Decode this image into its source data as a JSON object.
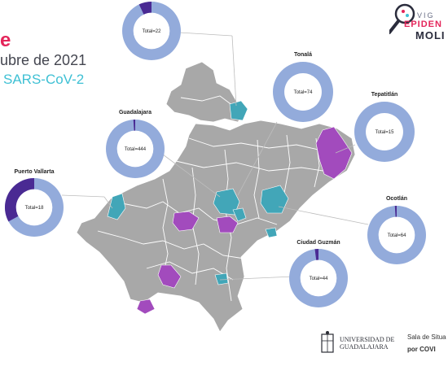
{
  "title_fragment": "e",
  "date_fragment": "ubre de 2021",
  "virus_fragment": "SARS-CoV-2",
  "colors": {
    "accent_pink": "#e4255a",
    "teal": "#3ec0d4",
    "region_teal": "#42a6b8",
    "region_purple": "#a24bbd",
    "region_gray": "#a8a8a8",
    "donut_light": "#93abdb",
    "donut_dark": "#4a2a93"
  },
  "logo": {
    "line1": "VIG",
    "line2": "EPIDEN",
    "line3": "MOLI"
  },
  "footer": {
    "udg_line1": "UNIVERSIDAD DE",
    "udg_line2": "GUADALAJARA",
    "sala_line1": "Sala de Situa",
    "sala_line2": "por COVI"
  },
  "chart_data": [
    {
      "type": "pie",
      "label": "",
      "total_text": "Total=22",
      "total": 22,
      "highlight_fraction": 0.07
    },
    {
      "type": "pie",
      "label": "Tonalá",
      "total_text": "Total=74",
      "total": 74,
      "highlight_fraction": 0.0
    },
    {
      "type": "pie",
      "label": "Tepatitlán",
      "total_text": "Total=15",
      "total": 15,
      "highlight_fraction": 0.0
    },
    {
      "type": "pie",
      "label": "Guadalajara",
      "total_text": "Total=444",
      "total": 444,
      "highlight_fraction": 0.01
    },
    {
      "type": "pie",
      "label": "Puerto Vallarta",
      "total_text": "Total=18",
      "total": 18,
      "highlight_fraction": 0.33
    },
    {
      "type": "pie",
      "label": "Ocotlán",
      "total_text": "Total=64",
      "total": 64,
      "highlight_fraction": 0.01
    },
    {
      "type": "pie",
      "label": "Ciudad Guzmán",
      "total_text": "Total=44",
      "total": 44,
      "highlight_fraction": 0.02
    }
  ]
}
